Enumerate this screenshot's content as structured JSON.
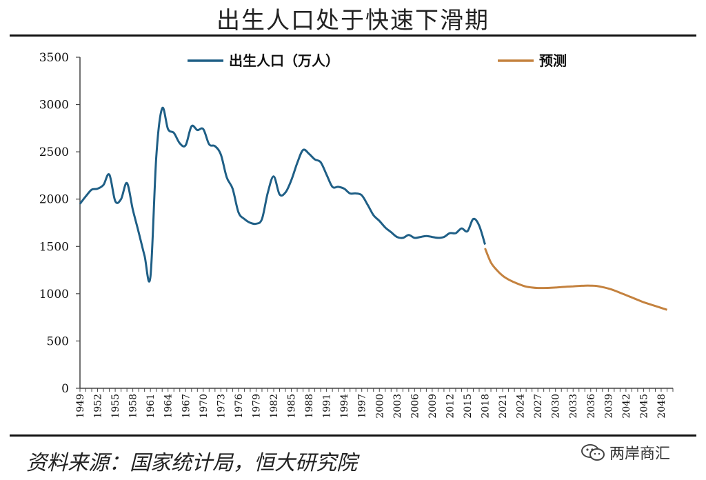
{
  "title": "出生人口处于快速下滑期",
  "source": "资料来源：国家统计局，恒大研究院",
  "watermark": "两岸商汇",
  "colors": {
    "actual": "#1f5f86",
    "forecast": "#c4823f"
  },
  "chart_data": {
    "type": "line",
    "title": "出生人口处于快速下滑期",
    "ylim": [
      0,
      3500
    ],
    "yticks": [
      0,
      500,
      1000,
      1500,
      2000,
      2500,
      3000,
      3500
    ],
    "xlim": [
      1949,
      2050
    ],
    "xtick_labels": [
      "1949",
      "1952",
      "1955",
      "1958",
      "1961",
      "1964",
      "1967",
      "1970",
      "1973",
      "1976",
      "1979",
      "1982",
      "1985",
      "1988",
      "1991",
      "1994",
      "1997",
      "2000",
      "2003",
      "2006",
      "2009",
      "2012",
      "2015",
      "2018",
      "2021",
      "2024",
      "2027",
      "2030",
      "2033",
      "2036",
      "2039",
      "2042",
      "2045",
      "2048"
    ],
    "grid": false,
    "legend_position": "top",
    "series": [
      {
        "name": "出生人口（万人）",
        "x": [
          1949,
          1950,
          1951,
          1952,
          1953,
          1954,
          1955,
          1956,
          1957,
          1958,
          1959,
          1960,
          1961,
          1962,
          1963,
          1964,
          1965,
          1966,
          1967,
          1968,
          1969,
          1970,
          1971,
          1972,
          1973,
          1974,
          1975,
          1976,
          1977,
          1978,
          1979,
          1980,
          1981,
          1982,
          1983,
          1984,
          1985,
          1986,
          1987,
          1988,
          1989,
          1990,
          1991,
          1992,
          1993,
          1994,
          1995,
          1996,
          1997,
          1998,
          1999,
          2000,
          2001,
          2002,
          2003,
          2004,
          2005,
          2006,
          2007,
          2008,
          2009,
          2010,
          2011,
          2012,
          2013,
          2014,
          2015,
          2016,
          2017,
          2018
        ],
        "values": [
          1950,
          2030,
          2100,
          2110,
          2150,
          2260,
          1980,
          2000,
          2170,
          1890,
          1650,
          1400,
          1180,
          2450,
          2960,
          2740,
          2700,
          2590,
          2570,
          2770,
          2730,
          2740,
          2580,
          2560,
          2470,
          2230,
          2110,
          1860,
          1790,
          1750,
          1740,
          1790,
          2070,
          2240,
          2050,
          2070,
          2200,
          2380,
          2520,
          2480,
          2420,
          2390,
          2260,
          2130,
          2130,
          2110,
          2060,
          2060,
          2040,
          1940,
          1830,
          1770,
          1700,
          1650,
          1600,
          1590,
          1620,
          1590,
          1600,
          1610,
          1600,
          1590,
          1600,
          1640,
          1640,
          1690,
          1660,
          1790,
          1720,
          1520
        ]
      },
      {
        "name": "预测",
        "x": [
          2018,
          2019,
          2020,
          2021,
          2022,
          2023,
          2024,
          2025,
          2026,
          2027,
          2028,
          2029,
          2030,
          2031,
          2032,
          2033,
          2034,
          2035,
          2036,
          2037,
          2038,
          2039,
          2040,
          2041,
          2042,
          2043,
          2044,
          2045,
          2046,
          2047,
          2048,
          2049
        ],
        "values": [
          1480,
          1330,
          1250,
          1190,
          1150,
          1120,
          1095,
          1075,
          1065,
          1060,
          1060,
          1062,
          1065,
          1070,
          1075,
          1078,
          1082,
          1085,
          1085,
          1082,
          1070,
          1055,
          1035,
          1010,
          985,
          960,
          935,
          910,
          890,
          870,
          850,
          830
        ]
      }
    ]
  }
}
